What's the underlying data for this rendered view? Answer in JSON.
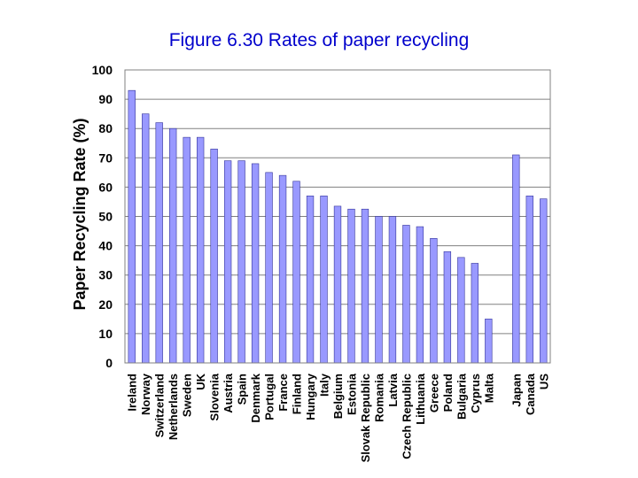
{
  "chart_data": {
    "type": "bar",
    "title": "Figure 6.30 Rates of paper recycling",
    "xlabel": "",
    "ylabel": "Paper Recycling Rate (%)",
    "ylim": [
      0,
      100
    ],
    "yticks": [
      "0",
      "10",
      "20",
      "30",
      "40",
      "50",
      "60",
      "70",
      "80",
      "90",
      "100"
    ],
    "grid": true,
    "legend": "none",
    "bar_color": "#9999ff",
    "bar_stroke": "#333399",
    "categories": [
      "Ireland",
      "Norway",
      "Switzerland",
      "Netherlands",
      "Sweden",
      "UK",
      "Slovenia",
      "Austria",
      "Spain",
      "Denmark",
      "Portugal",
      "France",
      "Finland",
      "Hungary",
      "Italy",
      "Belgium",
      "Estonia",
      "Slovak Republic",
      "Romania",
      "Latvia",
      "Czech Republic",
      "Lithuania",
      "Greece",
      "Poland",
      "Bulgaria",
      "Cyprus",
      "Malta",
      "",
      "Japan",
      "Canada",
      "US"
    ],
    "values": [
      93,
      85,
      82,
      80,
      77,
      77,
      73,
      69,
      69,
      68,
      65,
      64,
      62,
      57,
      57,
      53.5,
      52.5,
      52.5,
      50,
      50,
      47,
      46.5,
      42.5,
      38,
      36,
      34,
      15,
      null,
      71,
      57,
      56
    ]
  }
}
